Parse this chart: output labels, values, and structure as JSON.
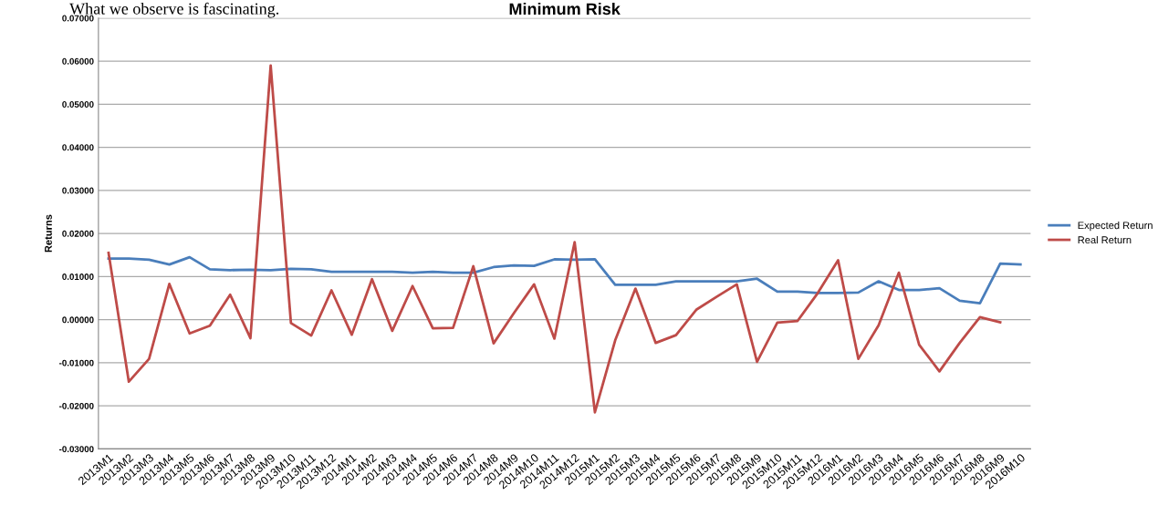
{
  "chart_data": {
    "type": "line",
    "title": "Minimum Risk",
    "ylabel": "Returns",
    "annotations": [
      "What we observe is fascinating."
    ],
    "categories": [
      "2013M1",
      "2013M2",
      "2013M3",
      "2013M4",
      "2013M5",
      "2013M6",
      "2013M7",
      "2013M8",
      "2013M9",
      "2013M10",
      "2013M11",
      "2013M12",
      "2014M1",
      "2014M2",
      "2014M3",
      "2014M4",
      "2014M5",
      "2014M6",
      "2014M7",
      "2014M8",
      "2014M9",
      "2014M10",
      "2014M11",
      "2014M12",
      "2015M1",
      "2015M2",
      "2015M3",
      "2015M4",
      "2015M5",
      "2015M6",
      "2015M7",
      "2015M8",
      "2015M9",
      "2015M10",
      "2015M11",
      "2015M12",
      "2016M1",
      "2016M2",
      "2016M3",
      "2016M4",
      "2016M5",
      "2016M6",
      "2016M7",
      "2016M8",
      "2016M9",
      "2016M10"
    ],
    "series": [
      {
        "name": "Expected Return",
        "color": "#4a7ebb",
        "values": [
          0.0142,
          0.0142,
          0.0139,
          0.0128,
          0.0145,
          0.0117,
          0.0115,
          0.0116,
          0.0115,
          0.0118,
          0.0117,
          0.0111,
          0.0111,
          0.0111,
          0.0111,
          0.0109,
          0.0111,
          0.0109,
          0.0109,
          0.0122,
          0.0126,
          0.0125,
          0.014,
          0.0139,
          0.014,
          0.0081,
          0.0081,
          0.0081,
          0.0089,
          0.0089,
          0.0089,
          0.0089,
          0.0095,
          0.0065,
          0.0065,
          0.0062,
          0.0062,
          0.0063,
          0.0089,
          0.0069,
          0.0069,
          0.0073,
          0.0044,
          0.0038,
          0.013,
          0.0128
        ]
      },
      {
        "name": "Real Return",
        "color": "#be4b48",
        "values": [
          0.0155,
          -0.0144,
          -0.0091,
          0.0083,
          -0.0032,
          -0.0014,
          0.0058,
          -0.0043,
          0.059,
          -0.0008,
          -0.0037,
          0.0068,
          -0.0035,
          0.0094,
          -0.0026,
          0.0078,
          -0.002,
          -0.0019,
          0.0124,
          -0.0055,
          0.0015,
          0.0082,
          -0.0044,
          0.018,
          -0.0215,
          -0.0048,
          0.0072,
          -0.0054,
          -0.0036,
          0.0023,
          0.0053,
          0.0082,
          -0.0098,
          -0.0007,
          -0.0003,
          0.0062,
          0.0138,
          -0.0091,
          -0.0013,
          0.0109,
          -0.0058,
          -0.012,
          -0.0054,
          0.0006,
          -0.0006,
          null
        ]
      }
    ],
    "ylim": [
      -0.03,
      0.07
    ],
    "yticks": [
      {
        "value": -0.03,
        "label": "-0.03000"
      },
      {
        "value": -0.02,
        "label": "-0.02000"
      },
      {
        "value": -0.01,
        "label": "-0.01000"
      },
      {
        "value": 0,
        "label": "0.00000"
      },
      {
        "value": 0.01,
        "label": "0.01000"
      },
      {
        "value": 0.02,
        "label": "0.02000"
      },
      {
        "value": 0.03,
        "label": "0.03000"
      },
      {
        "value": 0.04,
        "label": "0.04000"
      },
      {
        "value": 0.05,
        "label": "0.05000"
      },
      {
        "value": 0.06,
        "label": "0.06000"
      },
      {
        "value": 0.07,
        "label": "0.07000"
      }
    ],
    "grid": "y",
    "legend": "right",
    "marker": "none",
    "line_style": "solid"
  }
}
